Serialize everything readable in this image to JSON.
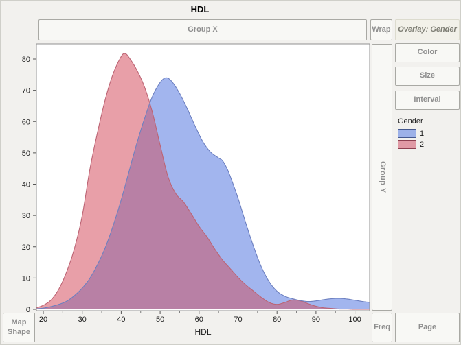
{
  "window": {
    "title": "HDL"
  },
  "drop_zones": {
    "group_x": "Group X",
    "wrap": "Wrap",
    "overlay": "Overlay: Gender",
    "color": "Color",
    "size": "Size",
    "interval": "Interval",
    "group_y": "Group Y",
    "freq": "Freq",
    "page": "Page",
    "map_shape_line1": "Map",
    "map_shape_line2": "Shape"
  },
  "legend": {
    "title": "Gender",
    "items": [
      {
        "label": "1",
        "fill": "#9db1e8",
        "border": "#46598f"
      },
      {
        "label": "2",
        "fill": "#e09aa5",
        "border": "#8d4050"
      }
    ]
  },
  "chart_data": {
    "type": "area",
    "subtype": "overlaid-smooth-density",
    "title": "HDL",
    "xlabel": "HDL",
    "ylabel": "",
    "xlim": [
      18.2,
      103.8
    ],
    "ylim": [
      0,
      84.8
    ],
    "x_ticks": [
      20,
      30,
      40,
      50,
      60,
      70,
      80,
      90,
      100
    ],
    "x_minor_ticks": [
      25,
      35,
      45,
      55,
      65,
      75,
      85,
      95
    ],
    "y_ticks": [
      0,
      10,
      20,
      30,
      40,
      50,
      60,
      70,
      80
    ],
    "grid": false,
    "legend_position": "right",
    "overlap_fill": "#b880a5",
    "series": [
      {
        "name": "1",
        "fill": "#a2b5ee",
        "stroke": "#6d80c0",
        "points": [
          [
            18.2,
            0.2
          ],
          [
            20,
            0.4
          ],
          [
            22,
            0.9
          ],
          [
            24,
            1.6
          ],
          [
            26,
            2.6
          ],
          [
            28,
            4.4
          ],
          [
            30,
            6.8
          ],
          [
            32,
            10
          ],
          [
            34,
            14.5
          ],
          [
            36,
            20
          ],
          [
            38,
            27
          ],
          [
            40,
            35
          ],
          [
            42,
            44
          ],
          [
            44,
            53
          ],
          [
            46,
            61
          ],
          [
            48,
            68
          ],
          [
            50,
            72.5
          ],
          [
            51.5,
            74
          ],
          [
            53,
            72.8
          ],
          [
            55,
            69
          ],
          [
            57,
            64
          ],
          [
            59,
            58.5
          ],
          [
            61,
            53.5
          ],
          [
            63,
            50.2
          ],
          [
            65,
            48.4
          ],
          [
            66,
            47.5
          ],
          [
            67,
            45.4
          ],
          [
            68,
            42.5
          ],
          [
            70,
            35.5
          ],
          [
            72,
            27.5
          ],
          [
            74,
            20
          ],
          [
            76,
            13.5
          ],
          [
            78,
            8.8
          ],
          [
            80,
            5.8
          ],
          [
            82,
            4.2
          ],
          [
            84,
            3.4
          ],
          [
            86,
            2.8
          ],
          [
            88,
            2.5
          ],
          [
            90,
            2.7
          ],
          [
            92,
            3.1
          ],
          [
            94,
            3.4
          ],
          [
            96,
            3.5
          ],
          [
            98,
            3.3
          ],
          [
            100,
            2.9
          ],
          [
            102,
            2.5
          ],
          [
            103.8,
            2.2
          ]
        ]
      },
      {
        "name": "2",
        "fill": "#e89fa8",
        "stroke": "#bc6474",
        "points": [
          [
            18.2,
            0.5
          ],
          [
            20,
            1.3
          ],
          [
            22,
            3
          ],
          [
            24,
            6.5
          ],
          [
            26,
            12
          ],
          [
            28,
            19.5
          ],
          [
            30,
            30
          ],
          [
            32,
            45
          ],
          [
            34,
            57
          ],
          [
            36,
            67.5
          ],
          [
            38,
            75.5
          ],
          [
            40,
            80.8
          ],
          [
            41,
            81.7
          ],
          [
            42,
            80.5
          ],
          [
            44,
            76.5
          ],
          [
            46,
            71
          ],
          [
            48,
            63
          ],
          [
            50,
            52.5
          ],
          [
            52,
            42.5
          ],
          [
            54,
            37
          ],
          [
            56,
            34.3
          ],
          [
            58,
            30.5
          ],
          [
            60,
            26.5
          ],
          [
            62,
            23.2
          ],
          [
            64,
            19.3
          ],
          [
            66,
            15.8
          ],
          [
            68,
            13
          ],
          [
            70,
            10.2
          ],
          [
            72,
            7.8
          ],
          [
            74,
            5.8
          ],
          [
            76,
            3.8
          ],
          [
            78,
            2.2
          ],
          [
            80,
            1.6
          ],
          [
            82,
            2.2
          ],
          [
            84,
            3
          ],
          [
            86,
            2.7
          ],
          [
            88,
            1.8
          ],
          [
            90,
            1
          ],
          [
            92,
            0.5
          ],
          [
            94,
            0.3
          ],
          [
            96,
            0.1
          ],
          [
            98,
            0.1
          ],
          [
            100,
            0
          ],
          [
            103.8,
            0
          ]
        ]
      }
    ],
    "axis_colors": {
      "border": "#909090",
      "tick": "#555555",
      "label": "#1c1c1c"
    }
  }
}
